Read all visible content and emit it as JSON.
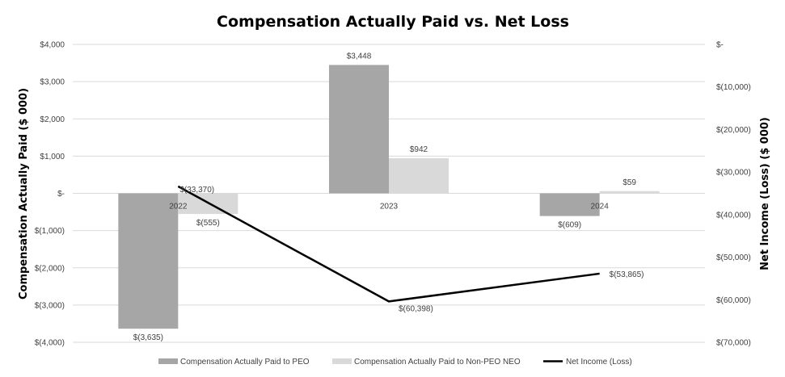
{
  "chart_data": {
    "type": "bar",
    "title": "Compensation Actually Paid vs. Net Loss",
    "categories": [
      "2022",
      "2023",
      "2024"
    ],
    "ylabel": "Compensation Actually Paid ($ 000)",
    "y2label": "Net Income (Loss) ($ 000)",
    "ylim": [
      -4000,
      4000
    ],
    "y2lim": [
      -70000,
      0
    ],
    "yticks": [
      4000,
      3000,
      2000,
      1000,
      0,
      -1000,
      -2000,
      -3000,
      -4000
    ],
    "ytick_labels": [
      "$4,000",
      "$3,000",
      "$2,000",
      "$1,000",
      "$-",
      "$(1,000)",
      "$(2,000)",
      "$(3,000)",
      "$(4,000)"
    ],
    "y2ticks": [
      0,
      -10000,
      -20000,
      -30000,
      -40000,
      -50000,
      -60000,
      -70000
    ],
    "y2tick_labels": [
      "$-",
      "$(10,000)",
      "$(20,000)",
      "$(30,000)",
      "$(40,000)",
      "$(50,000)",
      "$(60,000)",
      "$(70,000)"
    ],
    "grid": true,
    "legend_position": "bottom",
    "series": [
      {
        "name": "Compensation Actually Paid to PEO",
        "type": "bar",
        "axis": "left",
        "color": "#a6a6a6",
        "values": [
          -3635,
          3448,
          -609
        ],
        "labels": [
          "$(3,635)",
          "$3,448",
          "$(609)"
        ]
      },
      {
        "name": "Compensation Actually Paid to Non-PEO NEO",
        "type": "bar",
        "axis": "left",
        "color": "#d9d9d9",
        "values": [
          -555,
          942,
          59
        ],
        "labels": [
          "$(555)",
          "$942",
          "$59"
        ]
      },
      {
        "name": "Net Income (Loss)",
        "type": "line",
        "axis": "right",
        "color": "#000000",
        "values": [
          -33370,
          -60398,
          -53865
        ],
        "labels": [
          "$(33,370)",
          "$(60,398)",
          "$(53,865)"
        ]
      }
    ]
  }
}
